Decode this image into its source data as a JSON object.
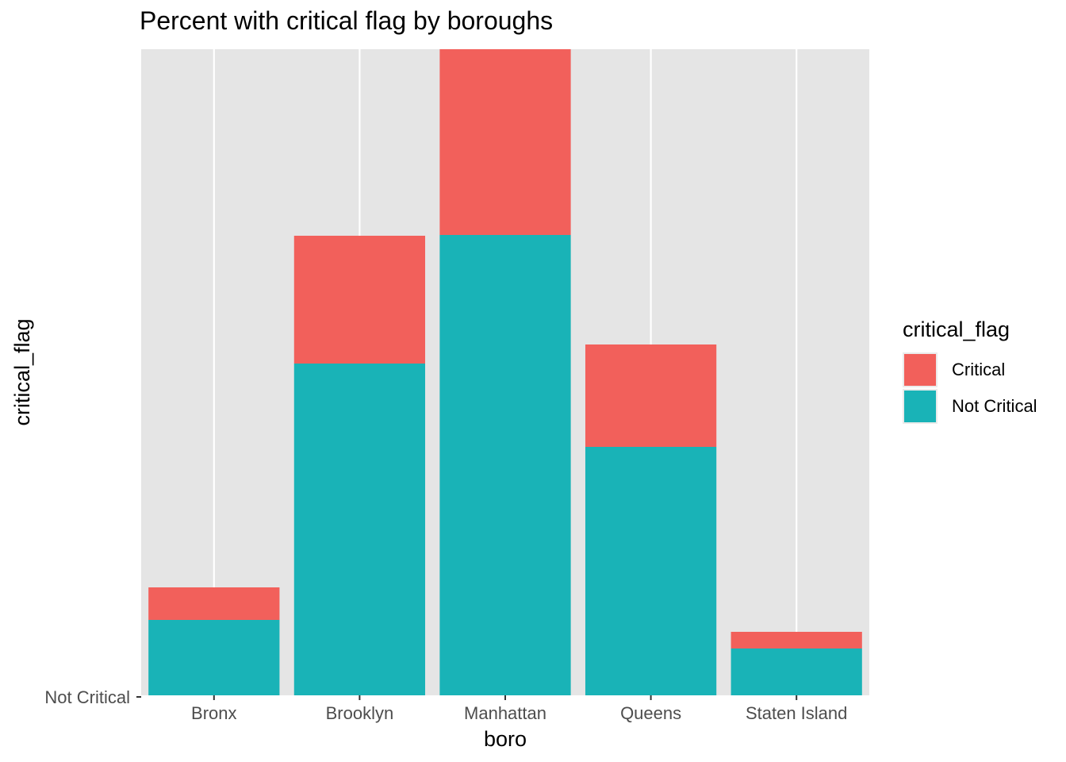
{
  "chart_data": {
    "type": "bar",
    "stacked": true,
    "title": "Percent with critical flag by boroughs",
    "xlabel": "boro",
    "ylabel": "critical_flag",
    "categories": [
      "Bronx",
      "Brooklyn",
      "Manhattan",
      "Queens",
      "Staten Island"
    ],
    "y_tick_labels": [
      "Not Critical"
    ],
    "series": [
      {
        "name": "Not Critical",
        "color": "#19B3B7",
        "values": [
          95,
          418,
          580,
          313,
          59
        ]
      },
      {
        "name": "Critical",
        "color": "#F2605B",
        "values": [
          41,
          161,
          234,
          129,
          21
        ]
      }
    ],
    "ylim": [
      0,
      814
    ],
    "grid": true,
    "legend": {
      "title": "critical_flag",
      "position": "right",
      "entries": [
        {
          "label": "Critical",
          "color": "#F2605B"
        },
        {
          "label": "Not Critical",
          "color": "#19B3B7"
        }
      ]
    }
  }
}
